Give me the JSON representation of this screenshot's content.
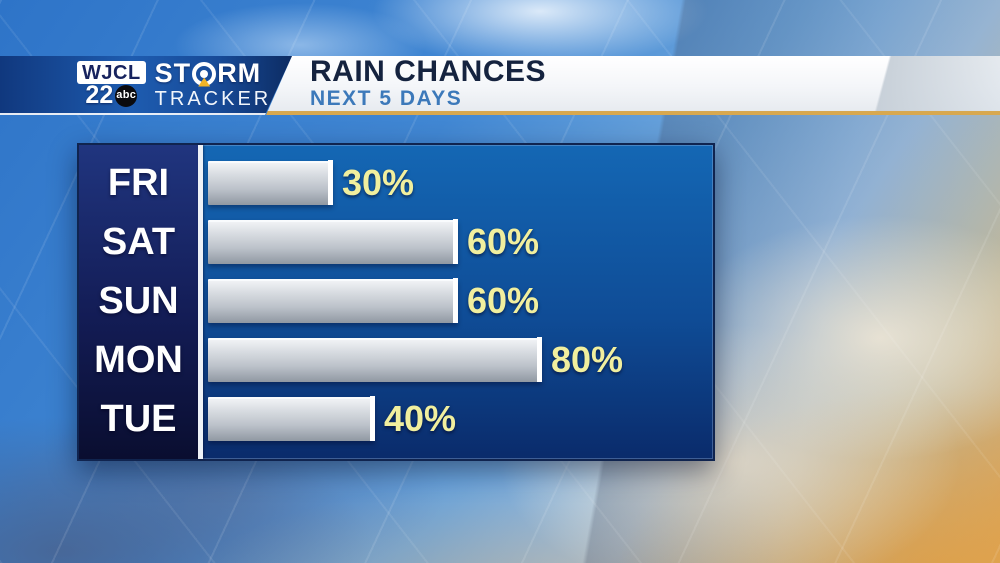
{
  "station": {
    "call_letters": "WJCL",
    "channel": "22",
    "network": "abc",
    "brand_line1_part_a": "ST",
    "brand_line1_part_b": "RM",
    "brand_line2": "TRACKER"
  },
  "header": {
    "title": "RAIN CHANCES",
    "subtitle": "NEXT 5 DAYS"
  },
  "chart_data": {
    "type": "bar",
    "orientation": "horizontal",
    "title": "RAIN CHANCES",
    "subtitle": "NEXT 5 DAYS",
    "categories": [
      "FRI",
      "SAT",
      "SUN",
      "MON",
      "TUE"
    ],
    "values": [
      30,
      60,
      60,
      80,
      40
    ],
    "value_labels": [
      "30%",
      "60%",
      "60%",
      "80%",
      "40%"
    ],
    "unit": "%",
    "xlim": [
      0,
      100
    ],
    "grid": false,
    "legend": false,
    "xlabel": "",
    "ylabel": ""
  },
  "colors": {
    "panel_top": "#1467b4",
    "panel_bottom": "#0a2b6b",
    "label_column_top": "#20357f",
    "label_column_bottom": "#0a0e30",
    "axis": "#eef2f7",
    "bar_silver_top": "#f0f2f5",
    "bar_silver_bottom": "#9098a2",
    "bar_end_cap": "#ffffff",
    "value_label": "#f1ef9e",
    "category_label": "#ffffff",
    "banner_gold_line": "#d8a84f",
    "banner_title": "#15233f",
    "banner_subtitle": "#3c79ba",
    "logo_bar_blue": "#1e5cb0",
    "radar_triangle": "#f0b428"
  }
}
